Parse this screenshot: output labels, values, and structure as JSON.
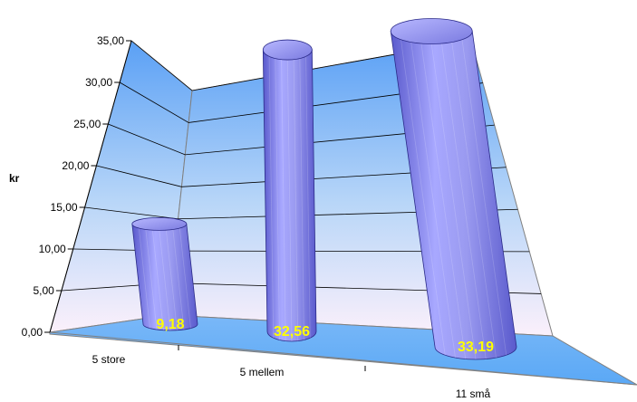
{
  "chart_data": {
    "type": "bar",
    "style": "3d-cylinder",
    "categories": [
      "5 store",
      "5 mellem",
      "11 små"
    ],
    "values": [
      9.18,
      32.56,
      33.19
    ],
    "value_labels": [
      "9,18",
      "32,56",
      "33,19"
    ],
    "ylabel": "kr",
    "ylim": [
      0,
      35
    ],
    "yticks": [
      "0,00",
      "5,00",
      "10,00",
      "15,00",
      "20,00",
      "25,00",
      "30,00",
      "35,00"
    ],
    "grid": true,
    "legend": "none",
    "colors": {
      "bar": "#8c8cee",
      "bar_dark": "#5a5acc",
      "bar_light": "#c8c8ff",
      "wall_top": "#5aa0f5",
      "wall_bottom": "#fbf0fb",
      "floor": "#7ab8f8",
      "data_label": "#ffff00"
    }
  }
}
